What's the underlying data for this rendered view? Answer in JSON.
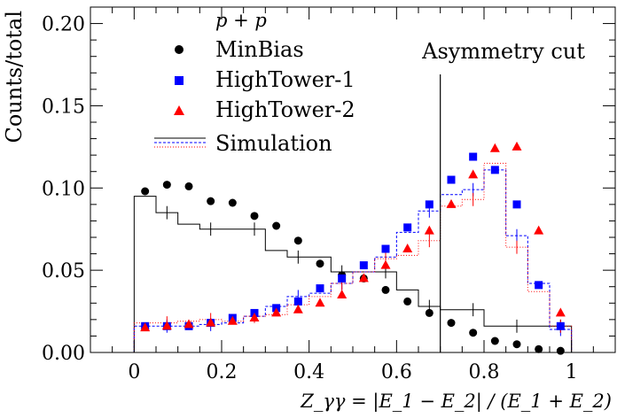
{
  "chart_data": {
    "type": "scatter",
    "xlabel": "Z_γγ = |E_1 − E_2| / (E_1 + E_2)",
    "ylabel": "Counts/total",
    "xlim": [
      -0.1,
      1.1
    ],
    "ylim": [
      0.0,
      0.21
    ],
    "x_ticks": [
      "0",
      "0.2",
      "0.4",
      "0.6",
      "0.8",
      "1"
    ],
    "y_ticks": [
      "0.00",
      "0.05",
      "0.10",
      "0.15",
      "0.20"
    ],
    "legend": {
      "header": "p + p",
      "entries": [
        "MinBias",
        "HighTower-1",
        "HighTower-2",
        "Simulation"
      ],
      "placement": "top-center"
    },
    "annotation": {
      "text": "Asymmetry cut",
      "x": 0.7
    },
    "series": [
      {
        "name": "MinBias",
        "marker": "circle",
        "color": "#000000",
        "x": [
          0.025,
          0.075,
          0.125,
          0.175,
          0.225,
          0.275,
          0.325,
          0.375,
          0.425,
          0.475,
          0.525,
          0.575,
          0.625,
          0.675,
          0.725,
          0.775,
          0.825,
          0.875,
          0.925,
          0.975
        ],
        "y": [
          0.098,
          0.102,
          0.101,
          0.092,
          0.091,
          0.083,
          0.077,
          0.068,
          0.054,
          0.047,
          0.045,
          0.038,
          0.031,
          0.024,
          0.018,
          0.012,
          0.007,
          0.005,
          0.002,
          0.001
        ]
      },
      {
        "name": "HighTower-1",
        "marker": "square",
        "color": "#0000ff",
        "x": [
          0.025,
          0.075,
          0.125,
          0.175,
          0.225,
          0.275,
          0.325,
          0.375,
          0.425,
          0.475,
          0.525,
          0.575,
          0.625,
          0.675,
          0.725,
          0.775,
          0.825,
          0.875,
          0.925,
          0.975
        ],
        "y": [
          0.016,
          0.016,
          0.016,
          0.018,
          0.021,
          0.024,
          0.027,
          0.031,
          0.039,
          0.045,
          0.053,
          0.063,
          0.076,
          0.09,
          0.105,
          0.119,
          0.111,
          0.09,
          0.041,
          0.016
        ]
      },
      {
        "name": "HighTower-2",
        "marker": "triangle",
        "color": "#ff0000",
        "x": [
          0.025,
          0.075,
          0.125,
          0.175,
          0.225,
          0.275,
          0.325,
          0.375,
          0.425,
          0.475,
          0.525,
          0.575,
          0.625,
          0.675,
          0.725,
          0.775,
          0.825,
          0.875,
          0.925,
          0.975
        ],
        "y": [
          0.015,
          0.016,
          0.017,
          0.018,
          0.019,
          0.021,
          0.024,
          0.026,
          0.03,
          0.035,
          0.045,
          0.053,
          0.063,
          0.074,
          0.09,
          0.108,
          0.124,
          0.125,
          0.074,
          0.024
        ]
      }
    ],
    "simulation": {
      "name": "Simulation",
      "bin_edges": [
        0.0,
        0.05,
        0.1,
        0.15,
        0.2,
        0.25,
        0.3,
        0.35,
        0.4,
        0.45,
        0.5,
        0.55,
        0.6,
        0.65,
        0.7,
        0.75,
        0.8,
        0.85,
        0.9,
        0.95,
        1.0
      ],
      "minbias": {
        "color": "#000000",
        "values": [
          0.095,
          0.085,
          0.078,
          0.075,
          0.075,
          0.075,
          0.062,
          0.058,
          0.058,
          0.049,
          0.049,
          0.049,
          0.038,
          0.028,
          0.026,
          0.026,
          0.016,
          0.016,
          0.016,
          0.016
        ]
      },
      "hightower1": {
        "color": "#0000ff",
        "values": [
          0.016,
          0.016,
          0.016,
          0.017,
          0.018,
          0.022,
          0.028,
          0.034,
          0.036,
          0.042,
          0.049,
          0.058,
          0.073,
          0.086,
          0.096,
          0.099,
          0.111,
          0.071,
          0.042,
          0.014
        ]
      },
      "hightower2": {
        "color": "#ff0000",
        "values": [
          0.018,
          0.018,
          0.019,
          0.02,
          0.019,
          0.022,
          0.023,
          0.029,
          0.034,
          0.042,
          0.049,
          0.057,
          0.059,
          0.068,
          0.089,
          0.093,
          0.115,
          0.064,
          0.037,
          0.016
        ]
      }
    }
  }
}
